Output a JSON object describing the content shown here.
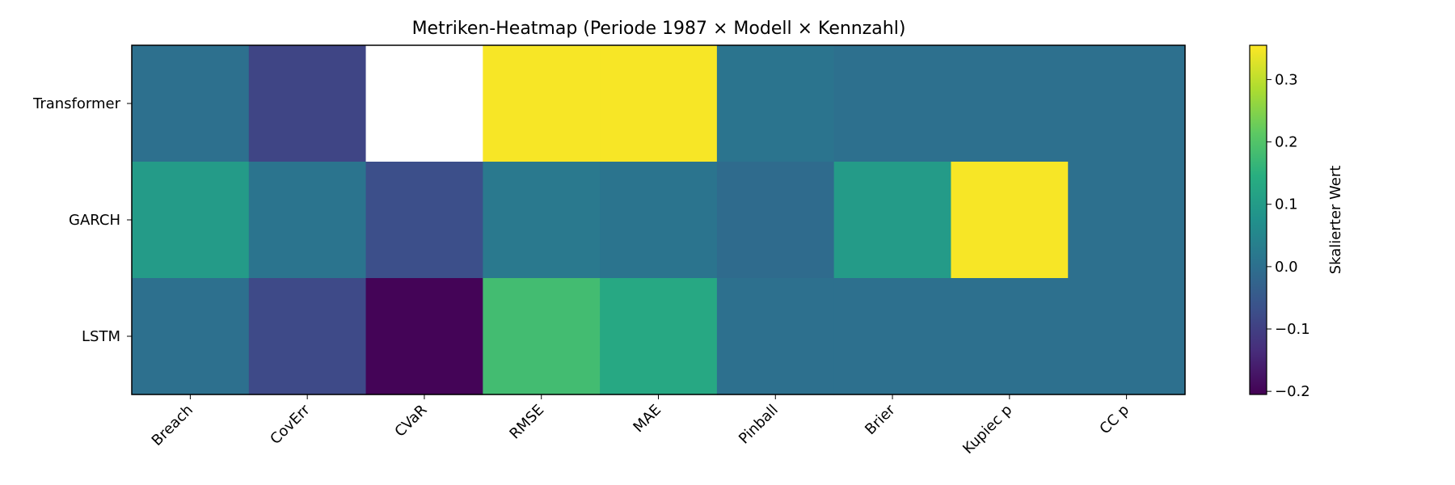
{
  "chart_data": {
    "type": "heatmap",
    "title": "Metriken-Heatmap (Periode 1987 × Modell × Kennzahl)",
    "xlabel": "",
    "ylabel": "",
    "columns": [
      "Breach",
      "CovErr",
      "CVaR",
      "RMSE",
      "MAE",
      "Pinball",
      "Brier",
      "Kupiec p",
      "CC p"
    ],
    "rows": [
      "Transformer",
      "GARCH",
      "LSTM"
    ],
    "values": [
      [
        0.0,
        -0.09,
        null,
        0.35,
        0.35,
        0.01,
        0.0,
        0.0,
        0.0
      ],
      [
        0.1,
        0.01,
        -0.07,
        0.02,
        0.01,
        -0.01,
        0.1,
        0.35,
        0.0
      ],
      [
        0.0,
        -0.08,
        -0.2,
        0.18,
        0.13,
        0.0,
        0.0,
        0.0,
        0.0
      ]
    ],
    "colorbar": {
      "label": "Skalierter Wert",
      "range": [
        -0.205,
        0.355
      ],
      "ticks": [
        -0.2,
        -0.1,
        0.0,
        0.1,
        0.2,
        0.3
      ],
      "tick_labels": [
        "−0.2",
        "−0.1",
        "0.0",
        "0.1",
        "0.2",
        "0.3"
      ]
    },
    "colormap": "viridis",
    "missing_color": "#ffffff"
  }
}
